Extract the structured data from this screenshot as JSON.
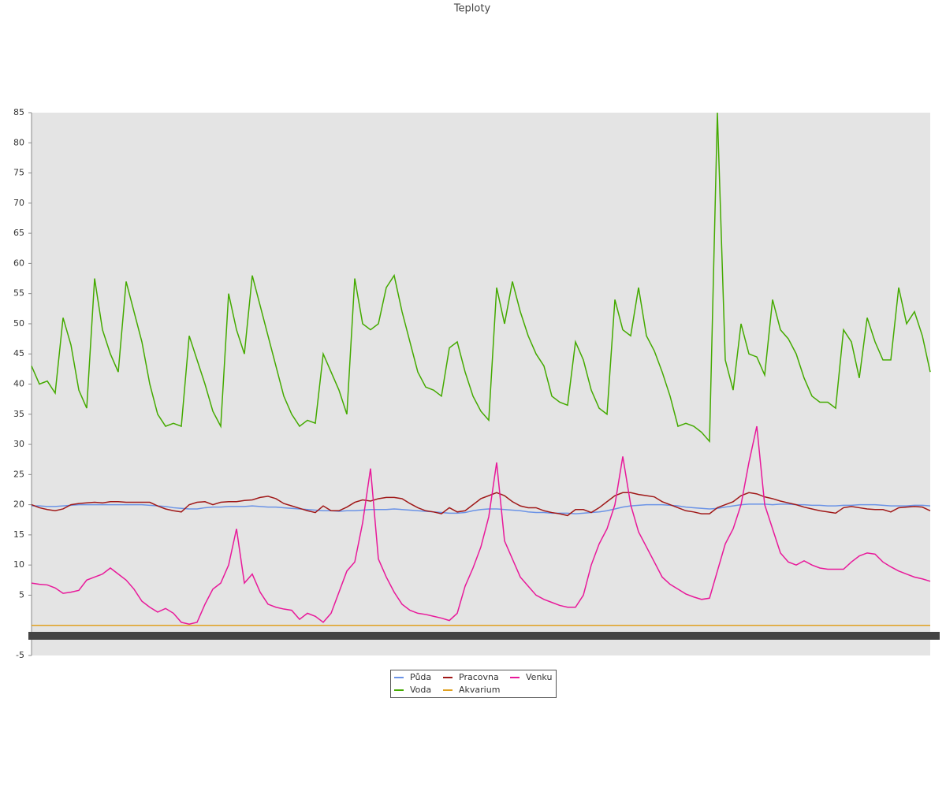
{
  "chart_data": {
    "type": "line",
    "title": "Teploty",
    "ylim": [
      -5,
      85
    ],
    "yticks": [
      -5,
      5,
      10,
      15,
      20,
      25,
      30,
      35,
      40,
      45,
      50,
      55,
      60,
      65,
      70,
      75,
      80,
      85
    ],
    "series": [
      {
        "name": "Půda",
        "color": "#6b93e6",
        "values": [
          19.8,
          19.8,
          19.7,
          19.7,
          19.8,
          19.9,
          20,
          20,
          20,
          20,
          20,
          20,
          20,
          20,
          20,
          19.9,
          19.8,
          19.7,
          19.5,
          19.4,
          19.3,
          19.3,
          19.5,
          19.6,
          19.6,
          19.7,
          19.7,
          19.7,
          19.8,
          19.7,
          19.6,
          19.6,
          19.5,
          19.4,
          19.3,
          19.2,
          19.1,
          19,
          19,
          18.9,
          19,
          19,
          19.1,
          19.2,
          19.2,
          19.2,
          19.3,
          19.2,
          19.1,
          19,
          18.9,
          18.8,
          18.7,
          18.6,
          18.6,
          18.7,
          19,
          19.2,
          19.3,
          19.3,
          19.2,
          19.1,
          19,
          18.8,
          18.7,
          18.7,
          18.6,
          18.6,
          18.6,
          18.5,
          18.6,
          18.7,
          18.8,
          19,
          19.3,
          19.6,
          19.8,
          19.9,
          20,
          20,
          20,
          19.9,
          19.8,
          19.6,
          19.5,
          19.4,
          19.3,
          19.4,
          19.6,
          19.8,
          20,
          20.1,
          20.1,
          20.1,
          20,
          20.1,
          20.1,
          20,
          20,
          19.9,
          19.9,
          19.8,
          19.8,
          19.9,
          19.9,
          20,
          20,
          20,
          19.9,
          19.8,
          19.8,
          19.8,
          19.9,
          19.9,
          19.8
        ]
      },
      {
        "name": "Voda",
        "color": "#44aa00",
        "values": [
          43,
          40,
          40.5,
          38.5,
          51,
          46.5,
          39,
          36,
          57.5,
          49,
          45,
          42,
          57,
          52,
          47,
          40,
          35,
          33,
          33.5,
          33,
          48,
          44,
          40,
          35.5,
          33,
          55,
          49,
          45,
          58,
          53,
          48,
          43,
          38,
          35,
          33,
          34,
          33.5,
          45,
          42,
          39,
          35,
          57.5,
          50,
          49,
          50,
          56,
          58,
          52,
          47,
          42,
          39.5,
          39,
          38,
          46,
          47,
          42,
          38,
          35.5,
          34,
          56,
          50,
          57,
          52,
          48,
          45,
          43,
          38,
          37,
          36.5,
          47,
          44,
          39,
          36,
          35,
          54,
          49,
          48,
          56,
          48,
          45.5,
          42,
          38,
          33,
          33.5,
          33,
          32,
          30.5,
          85,
          44,
          39,
          50,
          45,
          44.5,
          41.5,
          54,
          49,
          47.5,
          45,
          41,
          38,
          37,
          37,
          36,
          49,
          47,
          41,
          51,
          47,
          44,
          44,
          56,
          50,
          52,
          48,
          42
        ]
      },
      {
        "name": "Pracovna",
        "color": "#a01818",
        "values": [
          20,
          19.5,
          19.2,
          19,
          19.3,
          20,
          20.2,
          20.3,
          20.4,
          20.3,
          20.5,
          20.5,
          20.4,
          20.4,
          20.4,
          20.4,
          19.8,
          19.3,
          19,
          18.8,
          20,
          20.4,
          20.5,
          20,
          20.4,
          20.5,
          20.5,
          20.7,
          20.8,
          21.2,
          21.4,
          21,
          20.2,
          19.8,
          19.4,
          19,
          18.7,
          19.8,
          19,
          19,
          19.6,
          20.4,
          20.8,
          20.6,
          21,
          21.2,
          21.2,
          21,
          20.2,
          19.5,
          19,
          18.8,
          18.5,
          19.5,
          18.8,
          19,
          20,
          21,
          21.5,
          22,
          21.5,
          20.5,
          19.8,
          19.5,
          19.5,
          19,
          18.7,
          18.5,
          18.2,
          19.2,
          19.2,
          18.7,
          19.5,
          20.5,
          21.5,
          22,
          22,
          21.7,
          21.5,
          21.3,
          20.5,
          20,
          19.5,
          19,
          18.8,
          18.5,
          18.5,
          19.5,
          20,
          20.5,
          21.5,
          22,
          21.8,
          21.3,
          21,
          20.6,
          20.3,
          20,
          19.6,
          19.3,
          19,
          18.8,
          18.6,
          19.5,
          19.7,
          19.5,
          19.3,
          19.2,
          19.2,
          18.8,
          19.5,
          19.6,
          19.7,
          19.6,
          19
        ]
      },
      {
        "name": "Akvarium",
        "color": "#e0a020",
        "values": [
          0,
          0,
          0,
          0,
          0,
          0,
          0,
          0,
          0,
          0,
          0,
          0,
          0,
          0,
          0,
          0,
          0,
          0,
          0,
          0,
          0,
          0,
          0,
          0,
          0,
          0,
          0,
          0,
          0,
          0,
          0,
          0,
          0,
          0,
          0,
          0,
          0,
          0,
          0,
          0,
          0,
          0,
          0,
          0,
          0,
          0,
          0,
          0,
          0,
          0,
          0,
          0,
          0,
          0,
          0,
          0,
          0,
          0,
          0,
          0,
          0,
          0,
          0,
          0,
          0,
          0,
          0,
          0,
          0,
          0,
          0,
          0,
          0,
          0,
          0,
          0,
          0,
          0,
          0,
          0,
          0,
          0,
          0,
          0,
          0,
          0,
          0,
          0,
          0,
          0,
          0,
          0,
          0,
          0,
          0,
          0,
          0,
          0,
          0,
          0,
          0,
          0,
          0,
          0,
          0,
          0,
          0,
          0,
          0,
          0,
          0,
          0,
          0,
          0,
          0
        ]
      },
      {
        "name": "Venku",
        "color": "#e8199a",
        "values": [
          7,
          6.8,
          6.7,
          6.2,
          5.3,
          5.5,
          5.8,
          7.5,
          8,
          8.5,
          9.5,
          8.5,
          7.5,
          6,
          4,
          3,
          2.2,
          2.8,
          2,
          0.5,
          0.2,
          0.5,
          3.5,
          6,
          7,
          10,
          16,
          7,
          8.5,
          5.5,
          3.5,
          3,
          2.7,
          2.5,
          1,
          2,
          1.5,
          0.5,
          2,
          5.5,
          9,
          10.5,
          17,
          26,
          11,
          8,
          5.5,
          3.5,
          2.5,
          2,
          1.8,
          1.5,
          1.2,
          0.8,
          2,
          6.5,
          9.5,
          13,
          18,
          27,
          14,
          11,
          8,
          6.5,
          5,
          4.3,
          3.8,
          3.3,
          3,
          3,
          5,
          10,
          13.5,
          16,
          20,
          28,
          20,
          15.5,
          13,
          10.5,
          8,
          6.8,
          6,
          5.2,
          4.7,
          4.3,
          4.5,
          9,
          13.5,
          16,
          20,
          27,
          33,
          20,
          16,
          12,
          10.5,
          10,
          10.7,
          10,
          9.5,
          9.3,
          9.3,
          9.3,
          10.5,
          11.5,
          12,
          11.8,
          10.5,
          9.7,
          9,
          8.5,
          8,
          7.7,
          7.3
        ]
      }
    ]
  }
}
